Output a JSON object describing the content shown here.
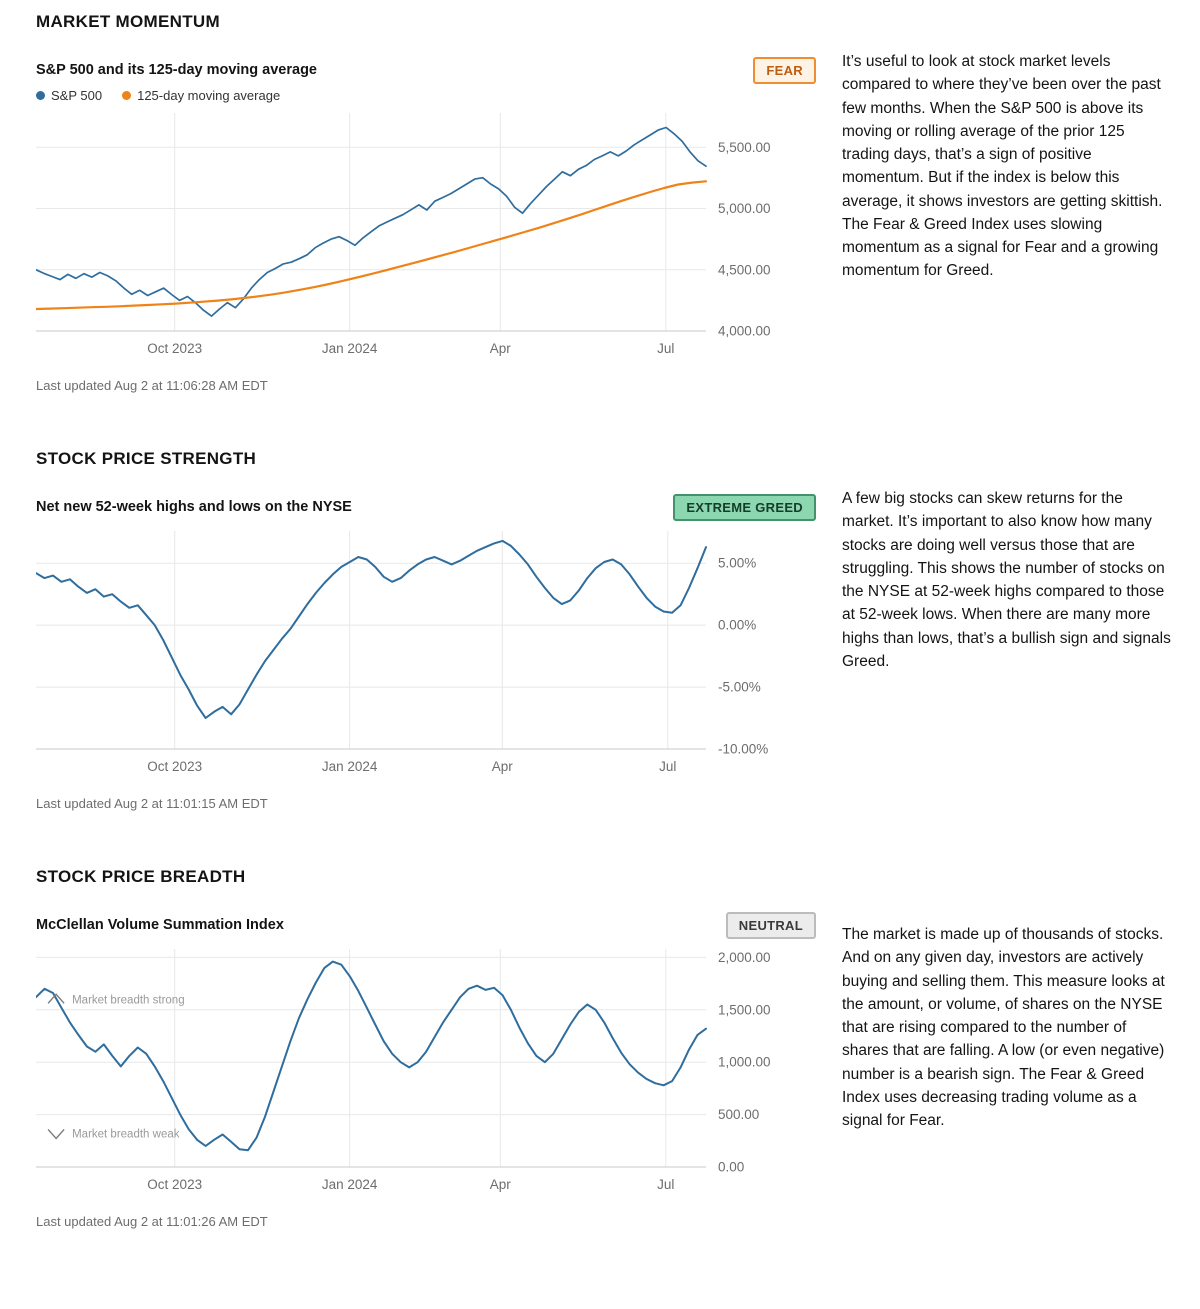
{
  "sections": [
    {
      "heading": "MARKET MOMENTUM",
      "chart_title": "S&P 500 and its 125-day moving average",
      "badge": "FEAR",
      "legend": [
        "S&P 500",
        "125-day moving average"
      ],
      "last_updated": "Last updated Aug 2 at 11:06:28 AM EDT",
      "description": "It’s useful to look at stock market levels compared to where they’ve been over the past few months. When the S&P 500 is above its moving or rolling average of the prior 125 trading days, that’s a sign of positive momentum. But if the index is below this average, it shows investors are getting skittish. The Fear & Greed Index uses slowing momentum as a signal for Fear and a growing momentum for Greed."
    },
    {
      "heading": "STOCK PRICE STRENGTH",
      "chart_title": "Net new 52-week highs and lows on the NYSE",
      "badge": "EXTREME GREED",
      "last_updated": "Last updated Aug 2 at 11:01:15 AM EDT",
      "description": "A few big stocks can skew returns for the market. It’s important to also know how many stocks are doing well versus those that are struggling. This shows the number of stocks on the NYSE at 52-week highs compared to those at 52-week lows. When there are many more highs than lows, that’s a bullish sign and signals Greed."
    },
    {
      "heading": "STOCK PRICE BREADTH",
      "chart_title": "McClellan Volume Summation Index",
      "badge": "NEUTRAL",
      "last_updated": "Last updated Aug 2 at 11:01:26 AM EDT",
      "description": "The market is made up of thousands of stocks. And on any given day, investors are actively buying and selling them. This measure looks at the amount, or volume, of shares on the NYSE that are rising compared to the number of shares that are falling. A low (or even negative) number is a bearish sign. The Fear & Greed Index uses decreasing trading volume as a signal for Fear."
    }
  ],
  "colors": {
    "line_blue": "#2e6d9e",
    "line_orange": "#ef8318",
    "fear_border": "#f08d2e",
    "greed_bg": "#8cd6b0",
    "neutral_bg": "#ececec",
    "grid": "#e8e8e8",
    "axis": "#c9c9c9",
    "tick_text": "#6d6d6d"
  },
  "chart_data": [
    {
      "type": "line",
      "title": "S&P 500 and its 125-day moving average",
      "ylim": [
        4000,
        5780
      ],
      "grid": true,
      "legend_position": "top-left",
      "y_ticks": [
        {
          "value": 5500,
          "label": "5,500.00"
        },
        {
          "value": 5000,
          "label": "5,000.00"
        },
        {
          "value": 4500,
          "label": "4,500.00"
        },
        {
          "value": 4000,
          "label": "4,000.00"
        }
      ],
      "x_ticks": [
        {
          "x": 0.207,
          "label": "Oct 2023"
        },
        {
          "x": 0.468,
          "label": "Jan 2024"
        },
        {
          "x": 0.693,
          "label": "Apr"
        },
        {
          "x": 0.94,
          "label": "Jul"
        }
      ],
      "series": [
        {
          "name": "S&P 500",
          "color": "#2e6d9e",
          "width": 1.7,
          "values": [
            4500,
            4470,
            4445,
            4420,
            4462,
            4430,
            4468,
            4440,
            4478,
            4450,
            4410,
            4352,
            4300,
            4332,
            4290,
            4320,
            4350,
            4298,
            4250,
            4282,
            4230,
            4170,
            4122,
            4180,
            4232,
            4190,
            4262,
            4350,
            4420,
            4478,
            4510,
            4548,
            4562,
            4590,
            4622,
            4680,
            4718,
            4750,
            4770,
            4738,
            4700,
            4760,
            4810,
            4858,
            4890,
            4920,
            4950,
            4990,
            5030,
            4988,
            5060,
            5090,
            5122,
            5160,
            5200,
            5240,
            5252,
            5200,
            5160,
            5100,
            5010,
            4962,
            5040,
            5110,
            5180,
            5240,
            5300,
            5268,
            5320,
            5352,
            5400,
            5430,
            5462,
            5430,
            5470,
            5520,
            5560,
            5600,
            5640,
            5662,
            5610,
            5550,
            5462,
            5390,
            5346
          ]
        },
        {
          "name": "125-day moving average",
          "color": "#ef8318",
          "width": 2.2,
          "values": [
            4180,
            4183,
            4186,
            4190,
            4194,
            4198,
            4202,
            4207,
            4212,
            4218,
            4224,
            4231,
            4239,
            4248,
            4258,
            4270,
            4284,
            4300,
            4318,
            4338,
            4360,
            4384,
            4410,
            4437,
            4465,
            4494,
            4524,
            4554,
            4584,
            4615,
            4646,
            4678,
            4710,
            4742,
            4775,
            4808,
            4842,
            4877,
            4913,
            4950,
            4988,
            5026,
            5064,
            5100,
            5135,
            5168,
            5196,
            5212,
            5222
          ]
        }
      ]
    },
    {
      "type": "line",
      "title": "Net new 52-week highs and lows on the NYSE",
      "ylim": [
        -10,
        7.6
      ],
      "grid": true,
      "y_ticks": [
        {
          "value": 5,
          "label": "5.00%"
        },
        {
          "value": 0,
          "label": "0.00%"
        },
        {
          "value": -5,
          "label": "-5.00%"
        },
        {
          "value": -10,
          "label": "-10.00%"
        }
      ],
      "x_ticks": [
        {
          "x": 0.207,
          "label": "Oct 2023"
        },
        {
          "x": 0.468,
          "label": "Jan 2024"
        },
        {
          "x": 0.696,
          "label": "Apr"
        },
        {
          "x": 0.943,
          "label": "Jul"
        }
      ],
      "series": [
        {
          "name": "Net new 52-week highs %",
          "color": "#2e6d9e",
          "width": 2,
          "values": [
            4.2,
            3.8,
            4.0,
            3.5,
            3.7,
            3.1,
            2.6,
            2.9,
            2.3,
            2.5,
            1.9,
            1.4,
            1.6,
            0.8,
            0.0,
            -1.2,
            -2.6,
            -4.0,
            -5.2,
            -6.5,
            -7.5,
            -7.0,
            -6.6,
            -7.2,
            -6.4,
            -5.2,
            -4.0,
            -2.9,
            -2.0,
            -1.1,
            -0.3,
            0.7,
            1.7,
            2.6,
            3.4,
            4.1,
            4.7,
            5.1,
            5.5,
            5.3,
            4.7,
            3.9,
            3.5,
            3.8,
            4.4,
            4.9,
            5.3,
            5.5,
            5.2,
            4.9,
            5.2,
            5.6,
            6.0,
            6.3,
            6.6,
            6.8,
            6.4,
            5.7,
            4.9,
            3.9,
            3.0,
            2.2,
            1.7,
            2.0,
            2.8,
            3.8,
            4.6,
            5.1,
            5.3,
            4.9,
            4.1,
            3.1,
            2.2,
            1.5,
            1.1,
            1.0,
            1.6,
            3.0,
            4.6,
            6.3
          ]
        }
      ]
    },
    {
      "type": "line",
      "title": "McClellan Volume Summation Index",
      "ylim": [
        0,
        2080
      ],
      "grid": true,
      "y_ticks": [
        {
          "value": 2000,
          "label": "2,000.00"
        },
        {
          "value": 1500,
          "label": "1,500.00"
        },
        {
          "value": 1000,
          "label": "1,000.00"
        },
        {
          "value": 500,
          "label": "500.00"
        },
        {
          "value": 0,
          "label": "0.00"
        }
      ],
      "x_ticks": [
        {
          "x": 0.207,
          "label": "Oct 2023"
        },
        {
          "x": 0.468,
          "label": "Jan 2024"
        },
        {
          "x": 0.693,
          "label": "Apr"
        },
        {
          "x": 0.94,
          "label": "Jul"
        }
      ],
      "annotations": [
        {
          "icon": "chevron-up",
          "label": "Market breadth strong",
          "x": 0.03,
          "value": 1600
        },
        {
          "icon": "chevron-down",
          "label": "Market breadth weak",
          "x": 0.03,
          "value": 320
        }
      ],
      "series": [
        {
          "name": "McClellan Volume Summation Index",
          "color": "#2e6d9e",
          "width": 2,
          "values": [
            1620,
            1700,
            1660,
            1520,
            1380,
            1260,
            1150,
            1100,
            1170,
            1060,
            960,
            1060,
            1140,
            1080,
            960,
            820,
            660,
            500,
            360,
            260,
            200,
            260,
            310,
            240,
            170,
            160,
            280,
            480,
            720,
            960,
            1200,
            1420,
            1600,
            1760,
            1900,
            1960,
            1930,
            1820,
            1680,
            1520,
            1360,
            1200,
            1080,
            1000,
            950,
            1000,
            1100,
            1240,
            1380,
            1500,
            1620,
            1700,
            1730,
            1690,
            1710,
            1640,
            1500,
            1330,
            1180,
            1060,
            1000,
            1080,
            1220,
            1360,
            1480,
            1550,
            1500,
            1380,
            1230,
            1090,
            980,
            900,
            840,
            800,
            780,
            820,
            950,
            1120,
            1260,
            1320
          ]
        }
      ]
    }
  ]
}
